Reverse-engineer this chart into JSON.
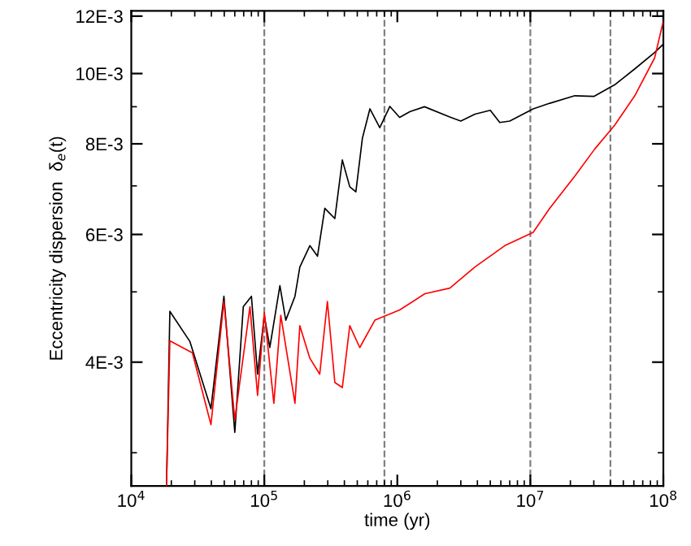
{
  "chart_data": {
    "type": "line",
    "xlabel": "time (yr)",
    "ylabel": "Eccentricity dispersion  δ$_{e}$(t)",
    "log": "xy",
    "xlim": [
      10000,
      100000000
    ],
    "xticks": [
      {
        "value": 10000,
        "label": "10$^{4}$"
      },
      {
        "value": 100000,
        "label": "10$^{5}$"
      },
      {
        "value": 1000000,
        "label": "10$^{6}$"
      },
      {
        "value": 10000000,
        "label": "10$^{7}$"
      },
      {
        "value": 100000000,
        "label": "10$^{8}$"
      }
    ],
    "ylim": [
      0.0027,
      0.0122
    ],
    "yticks": [
      {
        "value": 0.004,
        "label": "4E-3"
      },
      {
        "value": 0.006,
        "label": "6E-3"
      },
      {
        "value": 0.008,
        "label": "8E-3"
      },
      {
        "value": 0.01,
        "label": "10E-3"
      },
      {
        "value": 0.012,
        "label": "12E-3"
      }
    ],
    "grid": false,
    "marker": "none",
    "line_style": "solid",
    "ref_lines": [
      {
        "axis": "x",
        "value": 100000,
        "color": "#808080",
        "line_style": "dashed"
      },
      {
        "axis": "x",
        "value": 800000,
        "color": "#808080",
        "line_style": "dashed"
      },
      {
        "axis": "x",
        "value": 10000000,
        "color": "#808080",
        "line_style": "dashed"
      },
      {
        "axis": "x",
        "value": 40000000,
        "color": "#808080",
        "line_style": "dashed"
      }
    ],
    "series": [
      {
        "color": "#000000",
        "x": [
          18400,
          19500,
          27600,
          39700,
          49700,
          60000,
          69500,
          80000,
          89000,
          100000,
          110000,
          131000,
          145000,
          170000,
          185000,
          220000,
          251000,
          285000,
          339000,
          386000,
          439000,
          488000,
          546000,
          622000,
          738000,
          879000,
          1040000,
          1240000,
          1600000,
          2480000,
          3000000,
          3830000,
          5000000,
          5890000,
          7000000,
          10500000,
          14000000,
          21600000,
          30000000,
          43100000,
          61000000,
          86000000,
          99000000
        ],
        "values": [
          0.0027,
          0.0047,
          0.00427,
          0.00345,
          0.00493,
          0.0032,
          0.00477,
          0.00493,
          0.00385,
          0.00464,
          0.00419,
          0.0051,
          0.00457,
          0.00493,
          0.00541,
          0.00579,
          0.0056,
          0.00652,
          0.00631,
          0.0076,
          0.00698,
          0.00687,
          0.00814,
          0.00894,
          0.00842,
          0.00901,
          0.0087,
          0.00886,
          0.009,
          0.00871,
          0.0086,
          0.00879,
          0.0089,
          0.00856,
          0.0086,
          0.00894,
          0.0091,
          0.00932,
          0.0093,
          0.00965,
          0.01015,
          0.01069,
          0.01096
        ]
      },
      {
        "color": "#ff0000",
        "x": [
          18400,
          19500,
          28800,
          39700,
          49700,
          60000,
          78000,
          89000,
          100000,
          118000,
          133000,
          170000,
          185000,
          220000,
          261000,
          298000,
          339000,
          386000,
          439000,
          522000,
          678000,
          1040000,
          1610000,
          2480000,
          3830000,
          6430000,
          10500000,
          14000000,
          21600000,
          30500000,
          43100000,
          61000000,
          86000000,
          99000000
        ],
        "values": [
          0.0027,
          0.00428,
          0.00412,
          0.00328,
          0.00485,
          0.00333,
          0.00477,
          0.0036,
          0.00468,
          0.00351,
          0.00464,
          0.00351,
          0.00449,
          0.00405,
          0.00385,
          0.00485,
          0.00375,
          0.00369,
          0.00449,
          0.00419,
          0.00457,
          0.00472,
          0.00497,
          0.00506,
          0.00541,
          0.00579,
          0.00604,
          0.00652,
          0.00722,
          0.00787,
          0.00849,
          0.00932,
          0.01051,
          0.01173
        ]
      }
    ]
  }
}
